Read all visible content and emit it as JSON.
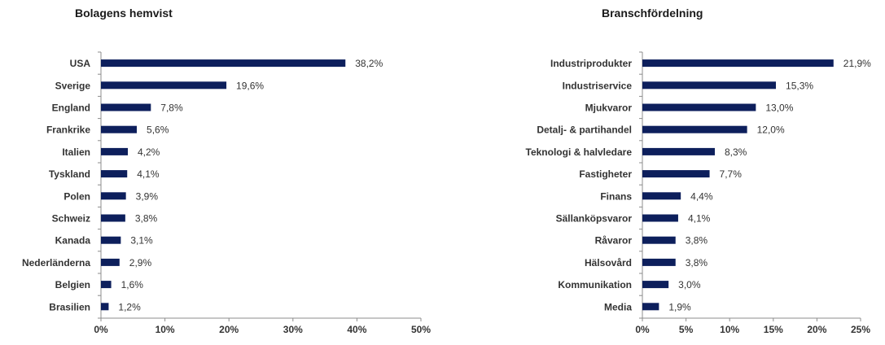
{
  "chart_data": [
    {
      "type": "bar",
      "orientation": "horizontal",
      "title": "Bolagens hemvist",
      "categories": [
        "USA",
        "Sverige",
        "England",
        "Frankrike",
        "Italien",
        "Tyskland",
        "Polen",
        "Schweiz",
        "Kanada",
        "Nederländerna",
        "Belgien",
        "Brasilien"
      ],
      "values": [
        38.2,
        19.6,
        7.8,
        5.6,
        4.2,
        4.1,
        3.9,
        3.8,
        3.1,
        2.9,
        1.6,
        1.2
      ],
      "value_labels": [
        "38,2%",
        "19,6%",
        "7,8%",
        "5,6%",
        "4,2%",
        "4,1%",
        "3,9%",
        "3,8%",
        "3,1%",
        "2,9%",
        "1,6%",
        "1,2%"
      ],
      "xlim": [
        0,
        50
      ],
      "xticks": [
        "0%",
        "10%",
        "20%",
        "30%",
        "40%",
        "50%"
      ],
      "bar_color": "#0d1f5c",
      "grid": false
    },
    {
      "type": "bar",
      "orientation": "horizontal",
      "title": "Branschfördelning",
      "categories": [
        "Industriprodukter",
        "Industriservice",
        "Mjukvaror",
        "Detalj- & partihandel",
        "Teknologi & halvledare",
        "Fastigheter",
        "Finans",
        "Sällanköpsvaror",
        "Råvaror",
        "Hälsovård",
        "Kommunikation",
        "Media"
      ],
      "values": [
        21.9,
        15.3,
        13.0,
        12.0,
        8.3,
        7.7,
        4.4,
        4.1,
        3.8,
        3.8,
        3.0,
        1.9
      ],
      "value_labels": [
        "21,9%",
        "15,3%",
        "13,0%",
        "12,0%",
        "8,3%",
        "7,7%",
        "4,4%",
        "4,1%",
        "3,8%",
        "3,8%",
        "3,0%",
        "1,9%"
      ],
      "xlim": [
        0,
        25
      ],
      "xticks": [
        "0%",
        "5%",
        "10%",
        "15%",
        "20%",
        "25%"
      ],
      "bar_color": "#0d1f5c",
      "grid": false
    }
  ]
}
